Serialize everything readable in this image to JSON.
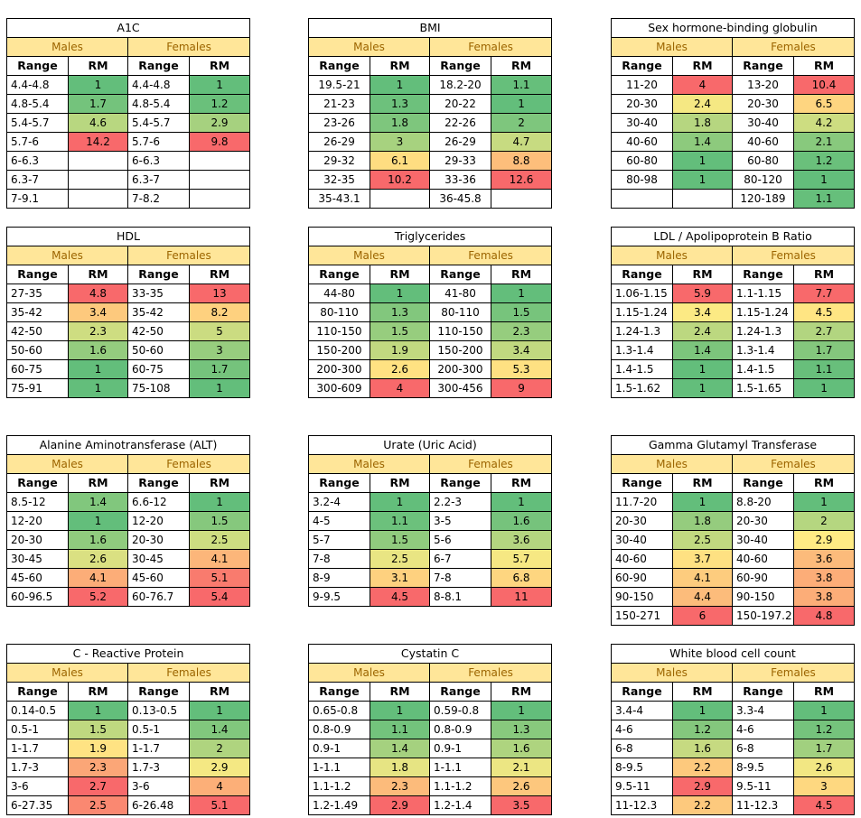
{
  "labels": {
    "males": "Males",
    "females": "Females",
    "range": "Range",
    "rm": "RM"
  },
  "colors": {
    "header_fill": "#ffe699",
    "header_text": "#9c6500",
    "scale_low": "#63be7b",
    "scale_mid": "#ffeb84",
    "scale_high": "#f8696b"
  },
  "tables": [
    {
      "title": "A1C",
      "males": [
        [
          "4.4-4.8",
          "1"
        ],
        [
          "4.8-5.4",
          "1.7"
        ],
        [
          "5.4-5.7",
          "4.6"
        ],
        [
          "5.7-6",
          "14.2"
        ],
        [
          "6-6.3",
          ""
        ],
        [
          "6.3-7",
          ""
        ],
        [
          "7-9.1",
          ""
        ]
      ],
      "females": [
        [
          "4.4-4.8",
          "1"
        ],
        [
          "4.8-5.4",
          "1.2"
        ],
        [
          "5.4-5.7",
          "2.9"
        ],
        [
          "5.7-6",
          "9.8"
        ],
        [
          "6-6.3",
          ""
        ],
        [
          "6.3-7",
          ""
        ],
        [
          "7-8.2",
          ""
        ]
      ]
    },
    {
      "title": "BMI",
      "males": [
        [
          "19.5-21",
          "1"
        ],
        [
          "21-23",
          "1.3"
        ],
        [
          "23-26",
          "1.8"
        ],
        [
          "26-29",
          "3"
        ],
        [
          "29-32",
          "6.1"
        ],
        [
          "32-35",
          "10.2"
        ],
        [
          "35-43.1",
          ""
        ]
      ],
      "females": [
        [
          "18.2-20",
          "1.1"
        ],
        [
          "20-22",
          "1"
        ],
        [
          "22-26",
          "2"
        ],
        [
          "26-29",
          "4.7"
        ],
        [
          "29-33",
          "8.8"
        ],
        [
          "33-36",
          "12.6"
        ],
        [
          "36-45.8",
          ""
        ]
      ]
    },
    {
      "title": "Sex hormone-binding globulin",
      "males": [
        [
          "11-20",
          "4"
        ],
        [
          "20-30",
          "2.4"
        ],
        [
          "30-40",
          "1.8"
        ],
        [
          "40-60",
          "1.4"
        ],
        [
          "60-80",
          "1"
        ],
        [
          "80-98",
          "1"
        ],
        [
          "",
          ""
        ]
      ],
      "females": [
        [
          "13-20",
          "10.4"
        ],
        [
          "20-30",
          "6.5"
        ],
        [
          "30-40",
          "4.2"
        ],
        [
          "40-60",
          "2.1"
        ],
        [
          "60-80",
          "1.2"
        ],
        [
          "80-120",
          "1"
        ],
        [
          "120-189",
          "1.1"
        ]
      ]
    },
    {
      "title": "HDL",
      "males": [
        [
          "27-35",
          "4.8"
        ],
        [
          "35-42",
          "3.4"
        ],
        [
          "42-50",
          "2.3"
        ],
        [
          "50-60",
          "1.6"
        ],
        [
          "60-75",
          "1"
        ],
        [
          "75-91",
          "1"
        ]
      ],
      "females": [
        [
          "33-35",
          "13"
        ],
        [
          "35-42",
          "8.2"
        ],
        [
          "42-50",
          "5"
        ],
        [
          "50-60",
          "3"
        ],
        [
          "60-75",
          "1.7"
        ],
        [
          "75-108",
          "1"
        ]
      ]
    },
    {
      "title": "Triglycerides",
      "males": [
        [
          "44-80",
          "1"
        ],
        [
          "80-110",
          "1.3"
        ],
        [
          "110-150",
          "1.5"
        ],
        [
          "150-200",
          "1.9"
        ],
        [
          "200-300",
          "2.6"
        ],
        [
          "300-609",
          "4"
        ]
      ],
      "females": [
        [
          "41-80",
          "1"
        ],
        [
          "80-110",
          "1.5"
        ],
        [
          "110-150",
          "2.3"
        ],
        [
          "150-200",
          "3.4"
        ],
        [
          "200-300",
          "5.3"
        ],
        [
          "300-456",
          "9"
        ]
      ]
    },
    {
      "title": "LDL / Apolipoprotein B Ratio",
      "males": [
        [
          "1.06-1.15",
          "5.9"
        ],
        [
          "1.15-1.24",
          "3.4"
        ],
        [
          "1.24-1.3",
          "2.4"
        ],
        [
          "1.3-1.4",
          "1.4"
        ],
        [
          "1.4-1.5",
          "1"
        ],
        [
          "1.5-1.62",
          "1"
        ]
      ],
      "females": [
        [
          "1.1-1.15",
          "7.7"
        ],
        [
          "1.15-1.24",
          "4.5"
        ],
        [
          "1.24-1.3",
          "2.7"
        ],
        [
          "1.3-1.4",
          "1.7"
        ],
        [
          "1.4-1.5",
          "1.1"
        ],
        [
          "1.5-1.65",
          "1"
        ]
      ]
    },
    {
      "title": "Alanine Aminotransferase (ALT)",
      "males": [
        [
          "8.5-12",
          "1.4"
        ],
        [
          "12-20",
          "1"
        ],
        [
          "20-30",
          "1.6"
        ],
        [
          "30-45",
          "2.6"
        ],
        [
          "45-60",
          "4.1"
        ],
        [
          "60-96.5",
          "5.2"
        ]
      ],
      "females": [
        [
          "6.6-12",
          "1"
        ],
        [
          "12-20",
          "1.5"
        ],
        [
          "20-30",
          "2.5"
        ],
        [
          "30-45",
          "4.1"
        ],
        [
          "45-60",
          "5.1"
        ],
        [
          "60-76.7",
          "5.4"
        ]
      ]
    },
    {
      "title": "Urate (Uric Acid)",
      "males": [
        [
          "3.2-4",
          "1"
        ],
        [
          "4-5",
          "1.1"
        ],
        [
          "5-7",
          "1.5"
        ],
        [
          "7-8",
          "2.5"
        ],
        [
          "8-9",
          "3.1"
        ],
        [
          "9-9.5",
          "4.5"
        ]
      ],
      "females": [
        [
          "2.2-3",
          "1"
        ],
        [
          "3-5",
          "1.6"
        ],
        [
          "5-6",
          "3.6"
        ],
        [
          "6-7",
          "5.7"
        ],
        [
          "7-8",
          "6.8"
        ],
        [
          "8-8.1",
          "11"
        ]
      ]
    },
    {
      "title": "Gamma Glutamyl Transferase",
      "males": [
        [
          "11.7-20",
          "1"
        ],
        [
          "20-30",
          "1.8"
        ],
        [
          "30-40",
          "2.5"
        ],
        [
          "40-60",
          "3.7"
        ],
        [
          "60-90",
          "4.1"
        ],
        [
          "90-150",
          "4.4"
        ],
        [
          "150-271",
          "6"
        ]
      ],
      "females": [
        [
          "8.8-20",
          "1"
        ],
        [
          "20-30",
          "2"
        ],
        [
          "30-40",
          "2.9"
        ],
        [
          "40-60",
          "3.6"
        ],
        [
          "60-90",
          "3.8"
        ],
        [
          "90-150",
          "3.8"
        ],
        [
          "150-197.2",
          "4.8"
        ]
      ]
    },
    {
      "title": "C - Reactive Protein",
      "males": [
        [
          "0.14-0.5",
          "1"
        ],
        [
          "0.5-1",
          "1.5"
        ],
        [
          "1-1.7",
          "1.9"
        ],
        [
          "1.7-3",
          "2.3"
        ],
        [
          "3-6",
          "2.7"
        ],
        [
          "6-27.35",
          "2.5"
        ]
      ],
      "females": [
        [
          "0.13-0.5",
          "1"
        ],
        [
          "0.5-1",
          "1.4"
        ],
        [
          "1-1.7",
          "2"
        ],
        [
          "1.7-3",
          "2.9"
        ],
        [
          "3-6",
          "4"
        ],
        [
          "6-26.48",
          "5.1"
        ]
      ]
    },
    {
      "title": "Cystatin C",
      "males": [
        [
          "0.65-0.8",
          "1"
        ],
        [
          "0.8-0.9",
          "1.1"
        ],
        [
          "0.9-1",
          "1.4"
        ],
        [
          "1-1.1",
          "1.8"
        ],
        [
          "1.1-1.2",
          "2.3"
        ],
        [
          "1.2-1.49",
          "2.9"
        ]
      ],
      "females": [
        [
          "0.59-0.8",
          "1"
        ],
        [
          "0.8-0.9",
          "1.3"
        ],
        [
          "0.9-1",
          "1.6"
        ],
        [
          "1-1.1",
          "2.1"
        ],
        [
          "1.1-1.2",
          "2.6"
        ],
        [
          "1.2-1.4",
          "3.5"
        ]
      ]
    },
    {
      "title": "White blood cell count",
      "males": [
        [
          "3.4-4",
          "1"
        ],
        [
          "4-6",
          "1.2"
        ],
        [
          "6-8",
          "1.6"
        ],
        [
          "8-9.5",
          "2.2"
        ],
        [
          "9.5-11",
          "2.9"
        ],
        [
          "11-12.3",
          "2.2"
        ]
      ],
      "females": [
        [
          "3.3-4",
          "1"
        ],
        [
          "4-6",
          "1.2"
        ],
        [
          "6-8",
          "1.7"
        ],
        [
          "8-9.5",
          "2.6"
        ],
        [
          "9.5-11",
          "3"
        ],
        [
          "11-12.3",
          "4.5"
        ]
      ]
    }
  ]
}
